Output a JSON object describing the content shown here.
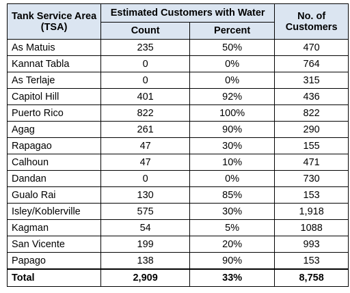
{
  "header": {
    "tsa_label": "Tank Service Area (TSA)",
    "tsa_line1": "Tank Service Area",
    "tsa_line2": "(TSA)",
    "estimated_label": "Estimated Customers with Water",
    "count_label": "Count",
    "percent_label": "Percent",
    "customers_line1": "No. of",
    "customers_line2": "Customers"
  },
  "rows": [
    {
      "area": "As Matuis",
      "count": "235",
      "percent": "50%",
      "customers": "470"
    },
    {
      "area": "Kannat Tabla",
      "count": "0",
      "percent": "0%",
      "customers": "764"
    },
    {
      "area": "As Terlaje",
      "count": "0",
      "percent": "0%",
      "customers": "315"
    },
    {
      "area": "Capitol Hill",
      "count": "401",
      "percent": "92%",
      "customers": "436"
    },
    {
      "area": "Puerto Rico",
      "count": "822",
      "percent": "100%",
      "customers": "822"
    },
    {
      "area": "Agag",
      "count": "261",
      "percent": "90%",
      "customers": "290"
    },
    {
      "area": "Rapagao",
      "count": "47",
      "percent": "30%",
      "customers": "155"
    },
    {
      "area": "Calhoun",
      "count": "47",
      "percent": "10%",
      "customers": "471"
    },
    {
      "area": "Dandan",
      "count": "0",
      "percent": "0%",
      "customers": "730"
    },
    {
      "area": "Gualo Rai",
      "count": "130",
      "percent": "85%",
      "customers": "153"
    },
    {
      "area": "Isley/Koblerville",
      "count": "575",
      "percent": "30%",
      "customers": "1,918"
    },
    {
      "area": "Kagman",
      "count": "54",
      "percent": "5%",
      "customers": "1088"
    },
    {
      "area": "San Vicente",
      "count": "199",
      "percent": "20%",
      "customers": "993"
    },
    {
      "area": "Papago",
      "count": "138",
      "percent": "90%",
      "customers": "153"
    }
  ],
  "total": {
    "label": "Total",
    "count": "2,909",
    "percent": "33%",
    "customers": "8,758"
  },
  "colors": {
    "header_bg": "#dbe5f1",
    "border": "#000000"
  }
}
